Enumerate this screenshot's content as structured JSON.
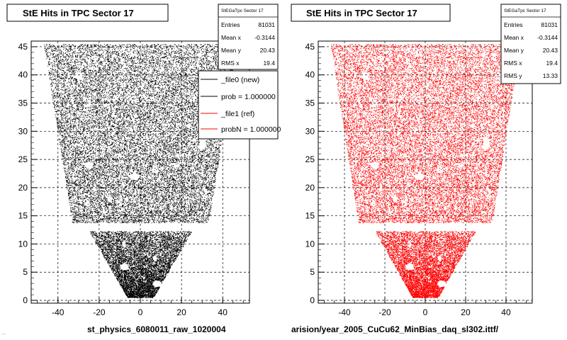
{
  "chart_data": [
    {
      "type": "scatter",
      "title": "StE Hits in TPC Sector 17",
      "xlim": [
        -53,
        53
      ],
      "ylim": [
        -0.5,
        46
      ],
      "xticks": [
        -40,
        -20,
        0,
        20,
        40
      ],
      "yticks": [
        0,
        5,
        10,
        15,
        20,
        25,
        30,
        35,
        40,
        45
      ],
      "grid": true,
      "series": [
        {
          "color": "#000000"
        }
      ],
      "stats": {
        "title": "StEGaTpc Sector 17",
        "rows": [
          {
            "label": "Entries",
            "value": "81031"
          },
          {
            "label": "Mean x",
            "value": "-0.3144"
          },
          {
            "label": "Mean y",
            "value": "20.43"
          },
          {
            "label": "RMS x",
            "value": "19.4"
          }
        ]
      },
      "legend": {
        "placement": "top-right",
        "entries": [
          {
            "label": "_file0 (new)",
            "color": "#000000"
          },
          {
            "label": "prob = 1.000000",
            "color": "#000000"
          },
          {
            "label": "_file1 (ref)",
            "color": "#ff0000"
          },
          {
            "label": "probN = 1.000000",
            "color": "#ff0000"
          }
        ]
      },
      "footer": "st_physics_6080011_raw_1020004"
    },
    {
      "type": "scatter",
      "title": "StE Hits in TPC Sector 17",
      "xlim": [
        -53,
        53
      ],
      "ylim": [
        -0.5,
        46
      ],
      "xticks": [
        -40,
        -20,
        0,
        20,
        40
      ],
      "yticks": [
        0,
        5,
        10,
        15,
        20,
        25,
        30,
        35,
        40,
        45
      ],
      "grid": true,
      "series": [
        {
          "color": "#ff0000"
        }
      ],
      "stats": {
        "title": "StEGaTpc Sector 17",
        "rows": [
          {
            "label": "Entries",
            "value": "81031"
          },
          {
            "label": "Mean x",
            "value": "-0.3144"
          },
          {
            "label": "Mean y",
            "value": "20.43"
          },
          {
            "label": "RMS x",
            "value": "19.4"
          },
          {
            "label": "RMS y",
            "value": "13.33"
          }
        ]
      },
      "footer": "arision/year_2005_CuCu62_MinBias_daq_sl302.ittf/"
    }
  ],
  "corner_note": "…"
}
